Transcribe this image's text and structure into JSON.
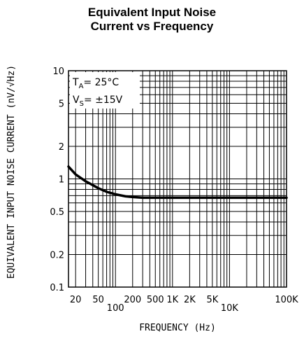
{
  "chart_data": {
    "type": "line",
    "title_line1": "Equivalent Input Noise",
    "title_line2": "Current vs Frequency",
    "xlabel": "FREQUENCY (Hz)",
    "ylabel": "EQUIVALENT INPUT NOISE CURRENT (nV/√Hz)",
    "x_scale": "log",
    "y_scale": "log",
    "xlim": [
      15,
      100000
    ],
    "ylim": [
      0.1,
      10
    ],
    "grid": true,
    "x_ticks": [
      {
        "value": 20,
        "label": "20"
      },
      {
        "value": 50,
        "label": "50"
      },
      {
        "value": 100,
        "label": "100"
      },
      {
        "value": 200,
        "label": "200"
      },
      {
        "value": 500,
        "label": "500"
      },
      {
        "value": 1000,
        "label": "1K"
      },
      {
        "value": 2000,
        "label": "2K"
      },
      {
        "value": 5000,
        "label": "5K"
      },
      {
        "value": 10000,
        "label": "10K"
      },
      {
        "value": 100000,
        "label": "100K"
      }
    ],
    "y_ticks": [
      {
        "value": 10,
        "label": "10"
      },
      {
        "value": 5,
        "label": "5"
      },
      {
        "value": 2,
        "label": "2"
      },
      {
        "value": 1,
        "label": "1"
      },
      {
        "value": 0.5,
        "label": "0.5"
      },
      {
        "value": 0.2,
        "label": "0.2"
      },
      {
        "value": 0.1,
        "label": "0.1"
      }
    ],
    "annotations": {
      "ta_main": "T",
      "ta_sub": "A",
      "ta_value": "= 25°C",
      "vs_main": "V",
      "vs_sub": "S",
      "vs_value": "= ±15V"
    },
    "series": [
      {
        "x": [
          15,
          20,
          30,
          50,
          70,
          100,
          150,
          200,
          300,
          500,
          1000,
          10000,
          100000
        ],
        "y": [
          1.3,
          1.1,
          0.95,
          0.82,
          0.76,
          0.72,
          0.69,
          0.68,
          0.67,
          0.67,
          0.67,
          0.67,
          0.67
        ]
      }
    ]
  }
}
